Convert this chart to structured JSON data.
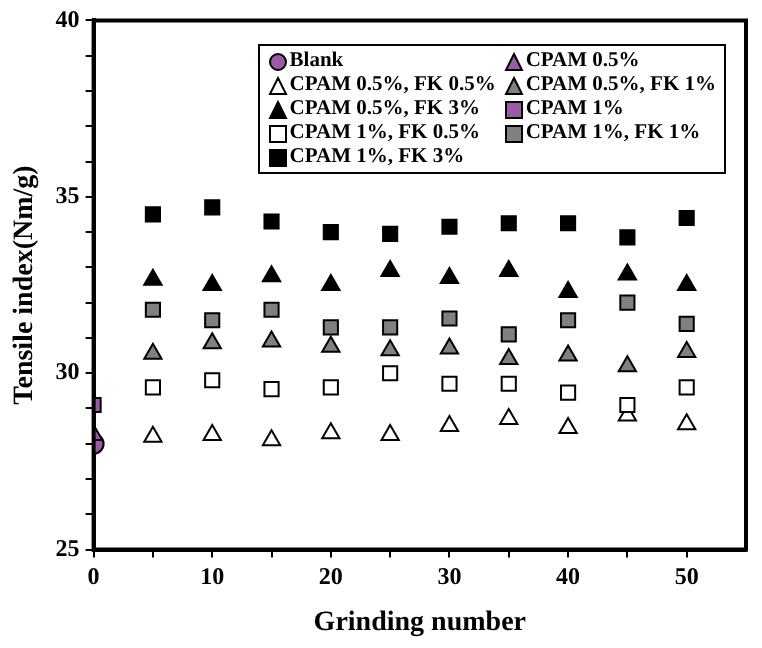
{
  "chart_data": {
    "type": "scatter",
    "xlabel": "Grinding number",
    "ylabel": "Tensile index(Nm/g)",
    "xlim": [
      0,
      55
    ],
    "xticks": [
      0,
      {
        "value": 5,
        "label": null
      },
      10,
      {
        "value": 15,
        "label": null
      },
      20,
      {
        "value": 25,
        "label": null
      },
      30,
      {
        "value": 35,
        "label": null
      },
      40,
      {
        "value": 45,
        "label": null
      },
      50
    ],
    "ylim": [
      25,
      40
    ],
    "yticks": [
      25,
      {
        "value": 26,
        "label": null
      },
      {
        "value": 27,
        "label": null
      },
      {
        "value": 28,
        "label": null
      },
      {
        "value": 29,
        "label": null
      },
      30,
      {
        "value": 31,
        "label": null
      },
      {
        "value": 32,
        "label": null
      },
      {
        "value": 33,
        "label": null
      },
      {
        "value": 34,
        "label": null
      },
      35,
      {
        "value": 36,
        "label": null
      },
      {
        "value": 37,
        "label": null
      },
      {
        "value": 38,
        "label": null
      },
      {
        "value": 39,
        "label": null
      },
      40
    ],
    "grid": false,
    "legend": "top right",
    "series": [
      {
        "name": "Blank",
        "color": "#9b59a8",
        "marker": "circle",
        "x": [
          0
        ],
        "values": [
          28.0
        ]
      },
      {
        "name": "CPAM 0.5%",
        "color": "#9b59a8",
        "marker": "triangle",
        "x": [
          0
        ],
        "values": [
          28.25
        ]
      },
      {
        "name": "CPAM 0.5%, FK 0.5%",
        "color": "#ffffff",
        "marker": "triangle",
        "x": [
          5,
          10,
          15,
          20,
          25,
          30,
          35,
          40,
          45,
          50
        ],
        "values": [
          28.2,
          28.25,
          28.1,
          28.3,
          28.25,
          28.5,
          28.7,
          28.45,
          28.8,
          28.55
        ]
      },
      {
        "name": "CPAM 0.5%, FK 1%",
        "color": "#808080",
        "marker": "triangle",
        "x": [
          5,
          10,
          15,
          20,
          25,
          30,
          35,
          40,
          45,
          50
        ],
        "values": [
          30.55,
          30.85,
          30.9,
          30.75,
          30.65,
          30.7,
          30.4,
          30.5,
          30.2,
          30.6
        ]
      },
      {
        "name": "CPAM 0.5%, FK 3%",
        "color": "#000000",
        "marker": "triangle",
        "x": [
          5,
          10,
          15,
          20,
          25,
          30,
          35,
          40,
          45,
          50
        ],
        "values": [
          32.65,
          32.5,
          32.75,
          32.5,
          32.9,
          32.7,
          32.9,
          32.3,
          32.8,
          32.5
        ]
      },
      {
        "name": "CPAM 1%",
        "color": "#9b59a8",
        "marker": "square",
        "x": [
          0
        ],
        "values": [
          29.1
        ]
      },
      {
        "name": "CPAM 1%, FK 0.5%",
        "color": "#ffffff",
        "marker": "square",
        "x": [
          5,
          10,
          15,
          20,
          25,
          30,
          35,
          40,
          45,
          50
        ],
        "values": [
          29.6,
          29.8,
          29.55,
          29.6,
          30.0,
          29.7,
          29.7,
          29.45,
          29.1,
          29.6
        ]
      },
      {
        "name": "CPAM 1%, FK 1%",
        "color": "#808080",
        "marker": "square",
        "x": [
          5,
          10,
          15,
          20,
          25,
          30,
          35,
          40,
          45,
          50
        ],
        "values": [
          31.8,
          31.5,
          31.8,
          31.3,
          31.3,
          31.55,
          31.1,
          31.5,
          32.0,
          31.4
        ]
      },
      {
        "name": "CPAM 1%, FK 3%",
        "color": "#000000",
        "marker": "square",
        "x": [
          5,
          10,
          15,
          20,
          25,
          30,
          35,
          40,
          45,
          50
        ],
        "values": [
          34.5,
          34.7,
          34.3,
          34.0,
          33.95,
          34.15,
          34.25,
          34.25,
          33.85,
          34.4
        ]
      }
    ]
  }
}
